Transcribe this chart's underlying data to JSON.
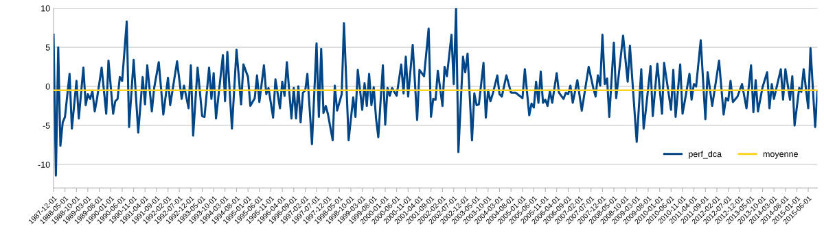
{
  "chart_data": {
    "type": "line",
    "x": [
      "1987-12",
      "1988-01",
      "1988-02",
      "1988-03",
      "1988-04",
      "1988-05",
      "1988-07",
      "1988-08",
      "1988-10",
      "1988-11",
      "1989-01",
      "1989-02",
      "1989-03",
      "1989-04",
      "1989-05",
      "1989-06",
      "1989-07",
      "1989-09",
      "1989-11",
      "1989-12",
      "1990-02",
      "1990-03",
      "1990-04",
      "1990-05",
      "1990-06",
      "1990-08",
      "1990-09",
      "1990-11",
      "1991-01",
      "1991-03",
      "1991-04",
      "1991-05",
      "1991-07",
      "1991-08",
      "1991-10",
      "1991-12",
      "1992-02",
      "1992-03",
      "1992-06",
      "1992-08",
      "1992-09",
      "1992-11",
      "1992-12",
      "1993-01",
      "1993-03",
      "1993-05",
      "1993-06",
      "1993-08",
      "1993-09",
      "1993-10",
      "1993-11",
      "1994-02",
      "1994-03",
      "1994-04",
      "1994-06",
      "1994-08",
      "1994-10",
      "1994-11",
      "1995-01",
      "1995-02",
      "1995-04",
      "1995-05",
      "1995-06",
      "1995-08",
      "1995-09",
      "1995-10",
      "1995-12",
      "1996-01",
      "1996-03",
      "1996-04",
      "1996-05",
      "1996-06",
      "1996-08",
      "1996-09",
      "1996-10",
      "1996-11",
      "1996-12",
      "1997-01",
      "1997-02",
      "1997-03",
      "1997-05",
      "1997-07",
      "1997-08",
      "1997-09",
      "1997-10",
      "1997-11",
      "1997-12",
      "1998-02",
      "1998-03",
      "1998-04",
      "1998-06",
      "1998-07",
      "1998-09",
      "1998-11",
      "1998-12",
      "1999-01",
      "1999-03",
      "1999-04",
      "1999-05",
      "1999-06",
      "1999-07",
      "1999-08",
      "1999-09",
      "1999-10",
      "1999-12",
      "2000-01",
      "2000-02",
      "2000-03",
      "2000-04",
      "2000-06",
      "2000-08",
      "2000-09",
      "2000-10",
      "2000-11",
      "2001-01",
      "2001-03",
      "2001-04",
      "2001-06",
      "2001-08",
      "2001-09",
      "2001-10",
      "2001-11",
      "2001-12",
      "2002-02",
      "2002-03",
      "2002-04",
      "2002-06",
      "2002-07",
      "2002-08",
      "2002-09",
      "2002-11",
      "2002-12",
      "2003-01",
      "2003-03",
      "2003-04",
      "2003-05",
      "2003-06",
      "2003-08",
      "2003-09",
      "2003-10",
      "2003-11",
      "2003-12",
      "2004-02",
      "2004-03",
      "2004-04",
      "2004-06",
      "2004-08",
      "2004-10",
      "2005-01",
      "2005-02",
      "2005-04",
      "2005-05",
      "2005-06",
      "2005-07",
      "2005-08",
      "2005-09",
      "2005-10",
      "2005-11",
      "2005-12",
      "2006-01",
      "2006-02",
      "2006-04",
      "2006-05",
      "2006-07",
      "2006-08",
      "2006-09",
      "2006-10",
      "2006-11",
      "2007-01",
      "2007-03",
      "2007-06",
      "2007-08",
      "2007-09",
      "2007-10",
      "2007-11",
      "2007-12",
      "2008-01",
      "2008-02",
      "2008-03",
      "2008-05",
      "2008-06",
      "2008-09",
      "2008-11",
      "2008-12",
      "2009-03",
      "2009-05",
      "2009-06",
      "2009-07",
      "2009-09",
      "2009-10",
      "2009-12",
      "2010-02",
      "2010-03",
      "2010-06",
      "2010-07",
      "2010-08",
      "2010-10",
      "2010-11",
      "2010-12",
      "2011-02",
      "2011-03",
      "2011-04",
      "2011-05",
      "2011-07",
      "2011-09",
      "2011-10",
      "2011-12",
      "2012-03",
      "2012-05",
      "2012-06",
      "2012-07",
      "2012-08",
      "2012-09",
      "2012-11",
      "2013-01",
      "2013-03",
      "2013-05",
      "2013-06",
      "2013-07",
      "2013-08",
      "2013-10",
      "2013-12",
      "2014-01",
      "2014-02",
      "2014-03",
      "2014-06",
      "2014-07",
      "2014-08",
      "2014-10",
      "2014-11",
      "2014-12",
      "2015-02",
      "2015-03",
      "2015-04",
      "2015-06",
      "2015-07",
      "2015-09",
      "2015-10"
    ],
    "series": [
      {
        "name": "perf_dca",
        "color": "#004586",
        "values": [
          6.6,
          -11.4,
          5.0,
          -7.6,
          -4.6,
          -3.9,
          1.6,
          -5.4,
          0.7,
          -4.1,
          2.4,
          -2.4,
          -1.0,
          -1.6,
          -0.6,
          -3.2,
          -1.6,
          2.4,
          -3.5,
          3.3,
          -3.5,
          -1.9,
          -1.6,
          1.2,
          0.7,
          8.3,
          -5.2,
          3.4,
          -5.9,
          1.2,
          -2.3,
          2.7,
          -3.2,
          -0.2,
          3.1,
          -3.6,
          1.1,
          -2.4,
          3.2,
          -1.6,
          0.1,
          -2.8,
          2.7,
          -6.3,
          2.4,
          -3.8,
          -3.9,
          2.4,
          -1.6,
          1.7,
          -4.1,
          4.0,
          -1.9,
          4.4,
          -5.4,
          4.7,
          -2.3,
          2.8,
          1.2,
          -2.5,
          -1.5,
          1.4,
          -2.0,
          2.7,
          -1.0,
          -0.2,
          -4.0,
          0.9,
          -2.8,
          0.6,
          -1.2,
          3.1,
          -4.1,
          -0.2,
          -4.1,
          0.0,
          -4.6,
          -0.8,
          -0.5,
          1.6,
          -7.4,
          5.5,
          -3.9,
          4.8,
          -3.4,
          -2.5,
          -3.6,
          -6.9,
          0.1,
          -3.1,
          -1.0,
          8.1,
          -6.9,
          -1.4,
          -3.9,
          2.1,
          -3.0,
          0.4,
          -2.5,
          1.6,
          -2.4,
          -0.1,
          -4.1,
          -6.5,
          2.7,
          -4.9,
          -0.2,
          -1.2,
          -0.2,
          -1.2,
          2.8,
          -0.9,
          3.8,
          -1.3,
          5.3,
          -4.3,
          2.1,
          1.3,
          7.4,
          -3.9,
          -1.6,
          -1.7,
          2.0,
          -2.5,
          2.5,
          1.3,
          6.6,
          0.3,
          10.0,
          -8.4,
          3.8,
          1.8,
          4.2,
          -6.9,
          -0.9,
          -2.4,
          -2.3,
          3.0,
          -4.0,
          -0.5,
          -1.9,
          -1.0,
          1.4,
          -1.0,
          -1.3,
          1.4,
          -0.8,
          -0.8,
          -1.5,
          2.2,
          -3.7,
          -2.2,
          -2.7,
          0.6,
          -2.1,
          1.9,
          -2.1,
          -1.7,
          -2.5,
          -0.6,
          -2.1,
          1.7,
          -0.8,
          -1.6,
          -0.8,
          -1.0,
          0.1,
          -2.1,
          0.8,
          -3.1,
          2.5,
          -0.2,
          -1.3,
          1.4,
          0.1,
          6.6,
          0.3,
          1.0,
          -3.9,
          5.6,
          -1.5,
          6.5,
          0.6,
          5.2,
          -7.1,
          2.2,
          -5.4,
          -3.0,
          2.6,
          -3.8,
          2.9,
          -3.5,
          3.0,
          -3.0,
          2.1,
          -3.9,
          2.8,
          -3.5,
          -1.9,
          1.6,
          -1.7,
          0.3,
          0.0,
          5.9,
          -4.2,
          1.8,
          -2.5,
          3.3,
          -3.6,
          -1.5,
          -1.8,
          0.7,
          -2.0,
          -1.3,
          0.3,
          -2.8,
          2.7,
          -3.3,
          0.8,
          -3.2,
          -0.1,
          1.8,
          -2.8,
          0.3,
          -1.6,
          2.2,
          -1.7,
          2.2,
          -1.7,
          1.3,
          -5.0,
          -0.2,
          -0.7,
          2.2,
          -2.8,
          4.9,
          -5.2,
          -0.6
        ]
      },
      {
        "name": "moyenne",
        "color": "#ffd320",
        "x": [
          "1987-12",
          "2015-10"
        ],
        "values": [
          -0.5,
          -0.5
        ]
      }
    ],
    "xlim": [
      "1987-12-01",
      "2015-10-01"
    ],
    "xticks": [
      "1987-12-01",
      "1988-05-01",
      "1988-10-01",
      "1989-03-01",
      "1989-08-01",
      "1990-01-01",
      "1990-06-01",
      "1990-11-01",
      "1991-04-01",
      "1991-09-01",
      "1992-02-01",
      "1992-07-01",
      "1992-12-01",
      "1993-05-01",
      "1993-10-01",
      "1994-03-01",
      "1994-08-01",
      "1995-01-01",
      "1995-06-01",
      "1995-11-01",
      "1996-04-01",
      "1996-09-01",
      "1997-02-01",
      "1997-07-01",
      "1997-12-01",
      "1998-05-01",
      "1998-10-01",
      "1999-03-01",
      "1999-08-01",
      "2000-01-01",
      "2000-06-01",
      "2000-11-01",
      "2001-04-01",
      "2001-09-01",
      "2002-02-01",
      "2002-07-01",
      "2002-12-01",
      "2003-05-01",
      "2003-10-01",
      "2004-03-01",
      "2004-08-01",
      "2005-01-01",
      "2005-06-01",
      "2005-11-01",
      "2006-04-01",
      "2006-09-01",
      "2007-02-01",
      "2007-07-01",
      "2007-12-01",
      "2008-05-01",
      "2008-10-01",
      "2009-03-01",
      "2009-08-01",
      "2010-01-01",
      "2010-06-01",
      "2010-11-01",
      "2011-04-01",
      "2011-09-01",
      "2012-02-01",
      "2012-07-01",
      "2012-12-01",
      "2013-05-01",
      "2013-10-01",
      "2014-03-01",
      "2014-08-01",
      "2015-01-01",
      "2015-06-01"
    ],
    "ylim": [
      -13,
      10
    ],
    "yticks": [
      -10,
      -5,
      0,
      5,
      10
    ],
    "grid": "y",
    "legend": "bottom right",
    "marker": "none",
    "line_style": "solid"
  }
}
